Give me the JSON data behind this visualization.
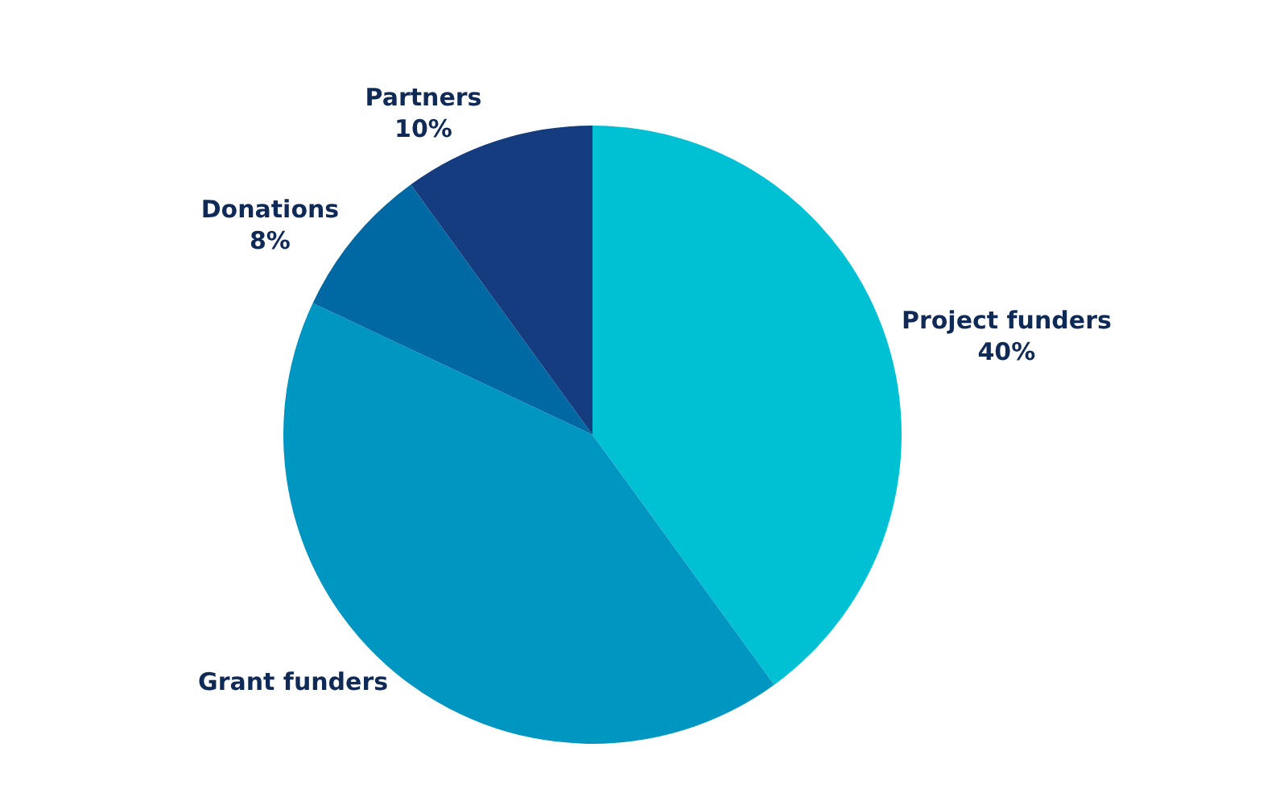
{
  "chart_data": {
    "type": "pie",
    "categories": [
      "Project funders",
      "Grant funders",
      "Donations",
      "Partners"
    ],
    "values": [
      40,
      42,
      8,
      10
    ],
    "colors": [
      "#00c0d4",
      "#0096c2",
      "#0069a3",
      "#143c7e"
    ],
    "value_labels": [
      "40%",
      null,
      "8%",
      "10%"
    ],
    "legend": false
  }
}
